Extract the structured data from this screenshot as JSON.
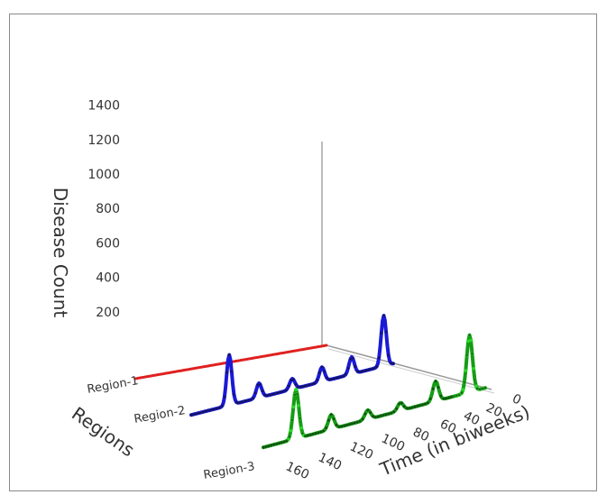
{
  "chart_data": {
    "type": "line",
    "projection": "3d-waterfall",
    "zlabel": "Disease Count",
    "xlabel": "Time (in biweeks)",
    "ylabel": "Regions",
    "z_ticks": [
      "200",
      "400",
      "600",
      "800",
      "1000",
      "1200",
      "1400"
    ],
    "z_tick_values": [
      200,
      400,
      600,
      800,
      1000,
      1200,
      1400
    ],
    "x_ticks": [
      "0",
      "20",
      "40",
      "60",
      "80",
      "100",
      "120",
      "140",
      "160"
    ],
    "x_tick_values": [
      0,
      20,
      40,
      60,
      80,
      100,
      120,
      140,
      160
    ],
    "xlim": [
      0,
      170
    ],
    "zlim": [
      0,
      1400
    ],
    "categories": [
      "Region-1",
      "Region-2",
      "Region-3"
    ],
    "series": [
      {
        "name": "Region-1",
        "color": "#e02020",
        "peaks": []
      },
      {
        "name": "Region-2",
        "color": "#1a1ad6",
        "peaks": [
          {
            "x": 8,
            "z": 380
          },
          {
            "x": 35,
            "z": 130
          },
          {
            "x": 60,
            "z": 110
          },
          {
            "x": 85,
            "z": 80
          },
          {
            "x": 113,
            "z": 110
          },
          {
            "x": 138,
            "z": 380
          }
        ]
      },
      {
        "name": "Region-3",
        "color": "#159c15",
        "accent": "#22dd22",
        "peaks": [
          {
            "x": 12,
            "z": 430
          },
          {
            "x": 38,
            "z": 150
          },
          {
            "x": 65,
            "z": 60
          },
          {
            "x": 90,
            "z": 70
          },
          {
            "x": 118,
            "z": 110
          },
          {
            "x": 145,
            "z": 370
          }
        ]
      }
    ]
  }
}
